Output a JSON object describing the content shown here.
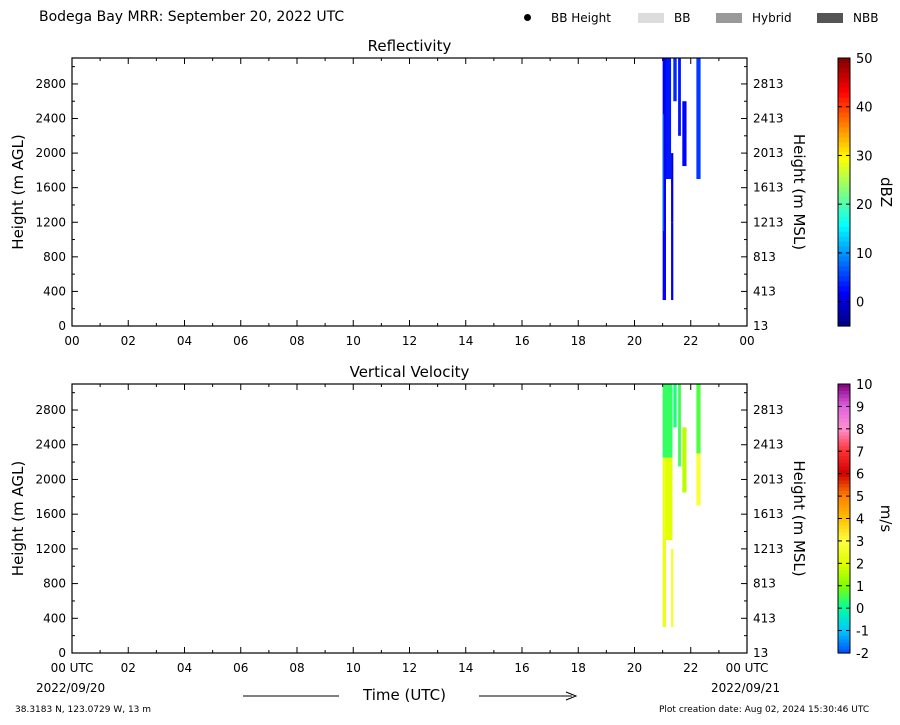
{
  "header": {
    "title": "Bodega Bay MRR:  September 20, 2022 UTC",
    "legend": [
      {
        "label": "BB Height",
        "kind": "dot",
        "color": "#000000"
      },
      {
        "label": "BB",
        "kind": "box",
        "color": "#dcdcdc"
      },
      {
        "label": "Hybrid",
        "kind": "box",
        "color": "#999999"
      },
      {
        "label": "NBB",
        "kind": "box",
        "color": "#555555"
      }
    ]
  },
  "footer": {
    "location": "38.3183 N, 123.0729 W, 13 m",
    "creation": "Plot creation date: Aug 02, 2024 15:30:46 UTC",
    "xlabel": "Time (UTC)",
    "start_date": "2022/09/20",
    "end_date": "2022/09/21"
  },
  "chart_data": [
    {
      "type": "heatmap",
      "title": "Reflectivity",
      "ylabel": "Height (m AGL)",
      "ylabel_right": "Height (m MSL)",
      "x_ticks": [
        "00",
        "02",
        "04",
        "06",
        "08",
        "10",
        "12",
        "14",
        "16",
        "18",
        "20",
        "22",
        "00"
      ],
      "xlim_hours": [
        0,
        24
      ],
      "ylim": [
        0,
        3100
      ],
      "y_ticks": [
        0,
        400,
        800,
        1200,
        1600,
        2000,
        2400,
        2800
      ],
      "y_ticks_right": [
        "13",
        "413",
        "813",
        "1213",
        "1613",
        "2013",
        "2413",
        "2813"
      ],
      "colorbar": {
        "label": "dBZ",
        "ticks": [
          0,
          10,
          20,
          30,
          40,
          50
        ],
        "range": [
          -5,
          50
        ],
        "colors": [
          "#00007f",
          "#0000ff",
          "#0080ff",
          "#00ffff",
          "#80ff80",
          "#ffff00",
          "#ff8000",
          "#ff0000",
          "#7f0000"
        ]
      },
      "series": [
        {
          "x": [
            21.0,
            21.12
          ],
          "y": [
            300,
            3100
          ],
          "value": 2
        },
        {
          "x": [
            21.0,
            21.04
          ],
          "y": [
            1100,
            2450
          ],
          "value": 8
        },
        {
          "x": [
            21.12,
            21.3
          ],
          "y": [
            1700,
            3100
          ],
          "value": 3
        },
        {
          "x": [
            21.3,
            21.38
          ],
          "y": [
            300,
            1200
          ],
          "value": 1
        },
        {
          "x": [
            21.3,
            21.38
          ],
          "y": [
            1200,
            2000
          ],
          "value": 0
        },
        {
          "x": [
            21.38,
            21.5
          ],
          "y": [
            2600,
            3100
          ],
          "value": 4
        },
        {
          "x": [
            21.55,
            21.65
          ],
          "y": [
            2200,
            3100
          ],
          "value": 3
        },
        {
          "x": [
            21.7,
            21.85
          ],
          "y": [
            1850,
            2600
          ],
          "value": 2
        },
        {
          "x": [
            22.2,
            22.35
          ],
          "y": [
            1700,
            3100
          ],
          "value": 5
        }
      ]
    },
    {
      "type": "heatmap",
      "title": "Vertical Velocity",
      "ylabel": "Height (m AGL)",
      "ylabel_right": "Height (m MSL)",
      "x_ticks": [
        "00 UTC",
        "02",
        "04",
        "06",
        "08",
        "10",
        "12",
        "14",
        "16",
        "18",
        "20",
        "22",
        "00 UTC"
      ],
      "xlim_hours": [
        0,
        24
      ],
      "ylim": [
        0,
        3100
      ],
      "y_ticks": [
        0,
        400,
        800,
        1200,
        1600,
        2000,
        2400,
        2800
      ],
      "y_ticks_right": [
        "13",
        "413",
        "813",
        "1213",
        "1613",
        "2013",
        "2413",
        "2813"
      ],
      "colorbar": {
        "label": "m/s",
        "ticks": [
          -2,
          -1,
          0,
          1,
          2,
          3,
          4,
          5,
          6,
          7,
          8,
          9,
          10
        ],
        "range": [
          -2,
          10
        ],
        "colors": [
          "#0050ff",
          "#00c8ff",
          "#00ffa0",
          "#80ff00",
          "#e0ff00",
          "#ffff40",
          "#ffc000",
          "#ff8000",
          "#d00000",
          "#ff3030",
          "#ff90d0",
          "#e060e0",
          "#800080"
        ]
      },
      "series": [
        {
          "x": [
            21.0,
            21.35
          ],
          "y": [
            2250,
            3100
          ],
          "value": 0.4
        },
        {
          "x": [
            21.0,
            21.12
          ],
          "y": [
            300,
            2250
          ],
          "value": 2.3
        },
        {
          "x": [
            21.12,
            21.35
          ],
          "y": [
            1300,
            2250
          ],
          "value": 2.1
        },
        {
          "x": [
            21.3,
            21.38
          ],
          "y": [
            300,
            1200
          ],
          "value": 2.6
        },
        {
          "x": [
            21.38,
            21.5
          ],
          "y": [
            2600,
            3100
          ],
          "value": 0.2
        },
        {
          "x": [
            21.55,
            21.65
          ],
          "y": [
            2150,
            3100
          ],
          "value": 0.5
        },
        {
          "x": [
            21.7,
            21.85
          ],
          "y": [
            1850,
            2600
          ],
          "value": 1.6
        },
        {
          "x": [
            22.2,
            22.35
          ],
          "y": [
            2300,
            3100
          ],
          "value": 0.6
        },
        {
          "x": [
            22.2,
            22.35
          ],
          "y": [
            1700,
            2300
          ],
          "value": 2.8
        }
      ]
    }
  ]
}
